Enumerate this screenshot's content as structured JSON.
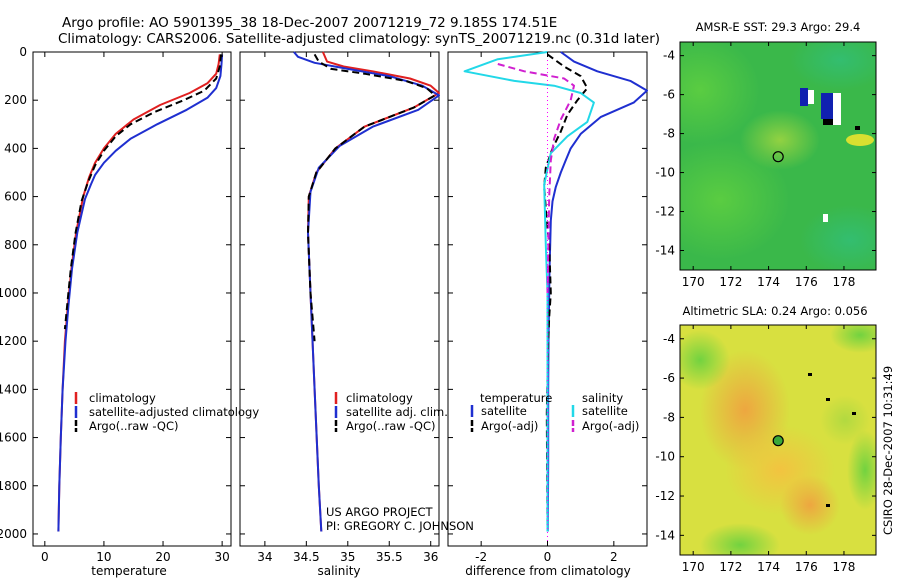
{
  "header": {
    "line1": "Argo profile: AO 5901395_38 18-Dec-2007 20071219_72 9.185S 174.51E",
    "line2": "Climatology: CARS2006. Satellite-adjusted climatology: synTS_20071219.nc (0.31d later)"
  },
  "credit": "CSIRO 28-Dec-2007 10:31:49",
  "project": {
    "line1": "US ARGO PROJECT",
    "line2": "PI: GREGORY C. JOHNSON"
  },
  "colors": {
    "climatology": "#e02020",
    "satellite": "#1f2fd0",
    "argo": "#000000",
    "sal_sat": "#22d8e8",
    "sal_argo": "#d020d0"
  },
  "chart_data": [
    {
      "id": "temperature",
      "type": "line",
      "xlabel": "temperature",
      "ylabel": "",
      "xlim": [
        -2,
        31.5
      ],
      "ylim": [
        2050,
        0
      ],
      "xticks": [
        0,
        10,
        20,
        30
      ],
      "yticks": [
        0,
        200,
        400,
        600,
        800,
        1000,
        1200,
        1400,
        1600,
        1800,
        2000
      ],
      "legend": {
        "entries": [
          "climatology",
          "satellite-adjusted climatology",
          "Argo(..raw -QC)"
        ],
        "position": "lower-center"
      },
      "series": [
        {
          "name": "climatology",
          "color": "#e02020",
          "dash": "",
          "x": [
            29.6,
            29.4,
            29.0,
            27.5,
            24.5,
            19.5,
            15.0,
            12.0,
            10.0,
            8.5,
            7.5,
            6.5,
            5.3,
            4.5,
            3.9,
            3.4,
            3.0,
            2.7,
            2.45,
            2.3
          ],
          "y": [
            10,
            50,
            90,
            130,
            170,
            220,
            280,
            340,
            400,
            460,
            520,
            600,
            750,
            900,
            1050,
            1200,
            1400,
            1600,
            1800,
            1990
          ]
        },
        {
          "name": "satellite-adjusted climatology",
          "color": "#1f2fd0",
          "dash": "",
          "x": [
            30.0,
            29.9,
            29.7,
            29.0,
            27.5,
            24.0,
            19.0,
            14.5,
            12.0,
            10.0,
            8.5,
            7.8,
            6.8,
            5.5,
            4.6,
            4.0,
            3.5,
            3.0,
            2.7,
            2.45,
            2.3
          ],
          "y": [
            10,
            50,
            100,
            150,
            190,
            240,
            300,
            360,
            410,
            460,
            510,
            550,
            610,
            750,
            900,
            1050,
            1200,
            1400,
            1600,
            1800,
            1990
          ]
        },
        {
          "name": "Argo(..raw -QC)",
          "color": "#000000",
          "dash": "7,4",
          "x": [
            29.8,
            29.6,
            29.0,
            27.0,
            23.5,
            18.5,
            14.5,
            12.0,
            10.0,
            8.5,
            7.3,
            6.2,
            5.2,
            4.4,
            3.9,
            3.4
          ],
          "y": [
            10,
            60,
            110,
            160,
            200,
            250,
            300,
            350,
            410,
            470,
            540,
            620,
            750,
            900,
            1020,
            1150
          ]
        }
      ]
    },
    {
      "id": "salinity",
      "type": "line",
      "xlabel": "salinity",
      "ylabel": "",
      "xlim": [
        33.7,
        36.1
      ],
      "ylim": [
        2050,
        0
      ],
      "xticks": [
        34,
        34.5,
        35,
        35.5,
        36
      ],
      "xticklabels": [
        "34",
        "34.5",
        "35",
        "35.5",
        "36"
      ],
      "legend": {
        "entries": [
          "climatology",
          "satellite adj. clim.",
          "Argo(..raw -QC)"
        ],
        "position": "lower-right"
      },
      "series": [
        {
          "name": "climatology",
          "color": "#e02020",
          "dash": "",
          "x": [
            34.7,
            34.75,
            34.95,
            35.3,
            35.75,
            36.0,
            36.1,
            35.8,
            35.2,
            34.85,
            34.62,
            34.53,
            34.52,
            34.55,
            34.6,
            34.65,
            34.68
          ],
          "y": [
            0,
            40,
            60,
            80,
            110,
            140,
            170,
            230,
            310,
            400,
            500,
            600,
            750,
            1000,
            1400,
            1800,
            1990
          ]
        },
        {
          "name": "satellite adj. clim.",
          "color": "#1f2fd0",
          "dash": "",
          "x": [
            34.35,
            34.4,
            34.6,
            35.0,
            35.5,
            35.9,
            36.1,
            35.85,
            35.3,
            34.9,
            34.65,
            34.55,
            34.52,
            34.55,
            34.6,
            34.65,
            34.68
          ],
          "y": [
            0,
            20,
            45,
            70,
            100,
            140,
            180,
            240,
            310,
            390,
            480,
            580,
            750,
            1000,
            1400,
            1800,
            1990
          ]
        },
        {
          "name": "Argo(..raw -QC)",
          "color": "#000000",
          "dash": "7,4",
          "x": [
            34.6,
            34.65,
            34.8,
            35.2,
            35.7,
            35.95,
            36.05,
            35.8,
            35.2,
            34.85,
            34.62,
            34.53,
            34.52,
            34.55,
            34.6
          ],
          "y": [
            10,
            40,
            70,
            90,
            120,
            150,
            180,
            230,
            310,
            400,
            500,
            600,
            750,
            1000,
            1200
          ]
        }
      ]
    },
    {
      "id": "difference",
      "type": "line",
      "xlabel": "difference from climatology",
      "ylabel": "",
      "xlim": [
        -3.0,
        3.0
      ],
      "ylim": [
        2050,
        0
      ],
      "xticks": [
        -2,
        0,
        2
      ],
      "legend": {
        "headers": [
          "temperature",
          "salinity"
        ],
        "entries": [
          "satellite",
          "Argo(-adj)",
          "satellite",
          "Argo(-adj)"
        ],
        "position": "lower-center"
      },
      "series": [
        {
          "name": "temperature satellite",
          "color": "#1f2fd0",
          "dash": "",
          "x": [
            0.4,
            0.8,
            1.5,
            2.5,
            3.0,
            2.6,
            1.6,
            1.0,
            0.7,
            0.55,
            0.4,
            0.25,
            0.15,
            0.1,
            0.08,
            0.06,
            0.05,
            0.03,
            0.02,
            0.02,
            0.01
          ],
          "y": [
            0,
            40,
            80,
            120,
            160,
            210,
            270,
            340,
            400,
            450,
            500,
            560,
            620,
            700,
            800,
            900,
            1000,
            1200,
            1400,
            1700,
            1990
          ]
        },
        {
          "name": "temperature Argo(-adj)",
          "color": "#000000",
          "dash": "7,4",
          "x": [
            0.0,
            0.5,
            1.0,
            1.2,
            0.9,
            0.6,
            0.4,
            0.15,
            -0.05,
            -0.1,
            -0.05,
            0.05,
            0.1,
            0.05,
            0.02,
            -0.02,
            0.0
          ],
          "y": [
            10,
            60,
            100,
            150,
            200,
            260,
            330,
            400,
            480,
            560,
            650,
            800,
            1000,
            1100,
            1200,
            1500,
            1990
          ]
        },
        {
          "name": "salinity satellite",
          "color": "#22d8e8",
          "dash": "",
          "x": [
            0.0,
            -1.5,
            -2.5,
            -1.0,
            0.2,
            1.0,
            1.4,
            1.2,
            0.6,
            0.1,
            -0.1,
            -0.05,
            0.0,
            0.0,
            0.0
          ],
          "y": [
            0,
            30,
            80,
            120,
            140,
            170,
            210,
            290,
            350,
            420,
            550,
            800,
            1000,
            1400,
            1990
          ]
        },
        {
          "name": "salinity Argo(-adj)",
          "color": "#d020d0",
          "dash": "7,4",
          "x": [
            -1.5,
            -0.7,
            0.5,
            0.8,
            0.7,
            0.4,
            0.2,
            0.1,
            0.05,
            0.0
          ],
          "y": [
            50,
            80,
            110,
            140,
            200,
            280,
            360,
            450,
            600,
            1000
          ]
        }
      ]
    },
    {
      "id": "sst_map",
      "type": "heatmap",
      "title": "AMSR-E SST: 29.3  Argo: 29.4",
      "xlim": [
        169.3,
        179.7
      ],
      "ylim": [
        -15,
        -3.3
      ],
      "xticks": [
        170,
        172,
        174,
        176,
        178
      ],
      "yticks": [
        -4,
        -6,
        -8,
        -10,
        -12,
        -14
      ],
      "float_position": {
        "lon": 174.51,
        "lat": -9.185
      },
      "marker_color": "#3aa83a"
    },
    {
      "id": "sla_map",
      "type": "heatmap",
      "title": "Altimetric SLA: 0.24  Argo: 0.056",
      "xlim": [
        169.3,
        179.7
      ],
      "ylim": [
        -15,
        -3.3
      ],
      "xticks": [
        170,
        172,
        174,
        176,
        178
      ],
      "yticks": [
        -4,
        -6,
        -8,
        -10,
        -12,
        -14
      ],
      "float_position": {
        "lon": 174.51,
        "lat": -9.185
      },
      "marker_color": "#3aa83a"
    }
  ]
}
